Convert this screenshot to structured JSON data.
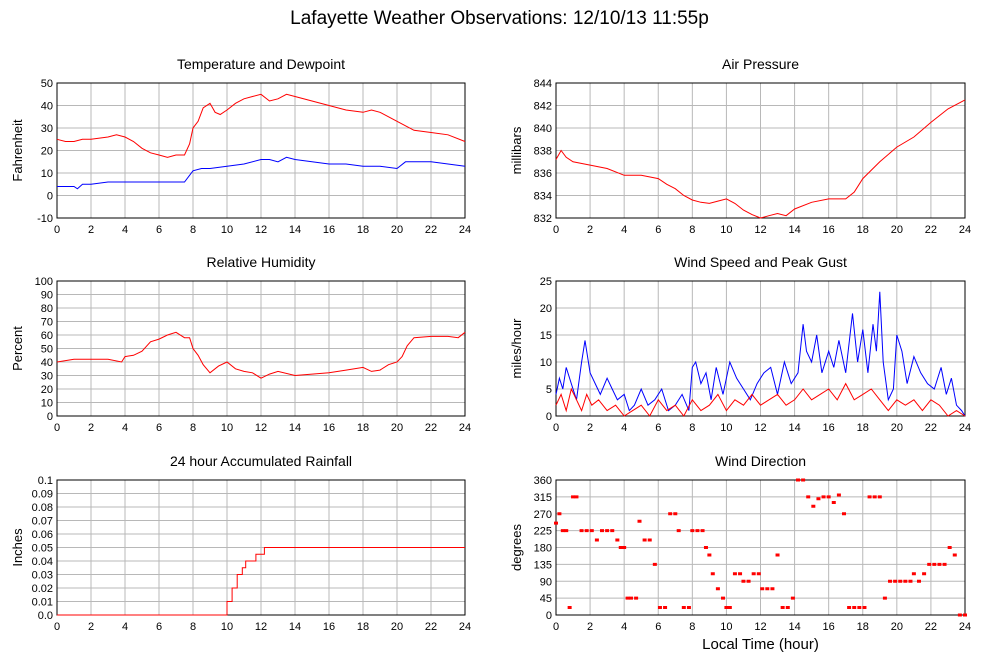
{
  "page": {
    "title": "Lafayette Weather Observations: 12/10/13 11:55p",
    "x_axis_title": "Local Time (hour)"
  },
  "colors": {
    "red": "#ff0000",
    "blue": "#0000ff",
    "grid": "#b8b8b8",
    "axis": "#000000"
  },
  "chart_data": [
    {
      "id": "temp",
      "type": "line",
      "title": "Temperature and Dewpoint",
      "ylabel": "Fahrenheit",
      "xlabel": "",
      "xlim": [
        0,
        24
      ],
      "ylim": [
        -10,
        50
      ],
      "xticks": [
        "0",
        "2",
        "4",
        "6",
        "8",
        "10",
        "12",
        "14",
        "16",
        "18",
        "20",
        "22",
        "24"
      ],
      "yticks": [
        "-10",
        "0",
        "10",
        "20",
        "30",
        "40",
        "50"
      ],
      "grid": true,
      "series": [
        {
          "color": "#ff0000",
          "x": [
            0,
            0.5,
            1,
            1.5,
            2,
            3,
            3.5,
            4,
            4.5,
            5,
            5.5,
            6,
            6.5,
            7,
            7.5,
            7.8,
            8,
            8.3,
            8.6,
            9,
            9.3,
            9.6,
            10,
            10.5,
            11,
            11.5,
            12,
            12.5,
            13,
            13.5,
            14,
            15,
            16,
            17,
            18,
            18.5,
            19,
            20,
            20.5,
            21,
            22,
            23,
            24
          ],
          "y": [
            25,
            24,
            24,
            25,
            25,
            26,
            27,
            26,
            24,
            21,
            19,
            18,
            17,
            18,
            18,
            23,
            30,
            33,
            39,
            41,
            37,
            36,
            38,
            41,
            43,
            44,
            45,
            42,
            43,
            45,
            44,
            42,
            40,
            38,
            37,
            38,
            37,
            33,
            31,
            29,
            28,
            27,
            24
          ]
        },
        {
          "color": "#0000ff",
          "x": [
            0,
            0.5,
            1,
            1.2,
            1.5,
            2,
            3,
            4,
            5,
            6,
            7,
            7.5,
            8,
            8.5,
            9,
            10,
            11,
            12,
            12.5,
            13,
            13.5,
            14,
            15,
            16,
            17,
            18,
            19,
            20,
            20.5,
            21,
            22,
            23,
            24
          ],
          "y": [
            4,
            4,
            4,
            3,
            5,
            5,
            6,
            6,
            6,
            6,
            6,
            6,
            11,
            12,
            12,
            13,
            14,
            16,
            16,
            15,
            17,
            16,
            15,
            14,
            14,
            13,
            13,
            12,
            15,
            15,
            15,
            14,
            13
          ]
        }
      ]
    },
    {
      "id": "press",
      "type": "line",
      "title": "Air Pressure",
      "ylabel": "millibars",
      "xlabel": "",
      "xlim": [
        0,
        24
      ],
      "ylim": [
        832,
        844
      ],
      "xticks": [
        "0",
        "2",
        "4",
        "6",
        "8",
        "10",
        "12",
        "14",
        "16",
        "18",
        "20",
        "22",
        "24"
      ],
      "yticks": [
        "832",
        "834",
        "836",
        "838",
        "840",
        "842",
        "844"
      ],
      "grid": true,
      "series": [
        {
          "color": "#ff0000",
          "x": [
            0,
            0.3,
            0.6,
            1,
            2,
            3,
            4,
            5,
            6,
            6.5,
            7,
            7.5,
            8,
            8.5,
            9,
            9.5,
            10,
            10.5,
            11,
            11.5,
            12,
            12.5,
            13,
            13.5,
            14,
            15,
            16,
            17,
            17.5,
            18,
            19,
            20,
            21,
            22,
            23,
            24
          ],
          "y": [
            837.2,
            838,
            837.4,
            837,
            836.7,
            836.4,
            835.8,
            835.8,
            835.5,
            835,
            834.6,
            834,
            833.6,
            833.4,
            833.3,
            833.5,
            833.7,
            833.3,
            832.7,
            832.3,
            832,
            832.2,
            832.4,
            832.2,
            832.8,
            833.4,
            833.7,
            833.7,
            834.3,
            835.5,
            837,
            838.3,
            839.2,
            840.5,
            841.7,
            842.5
          ]
        }
      ]
    },
    {
      "id": "rh",
      "type": "line",
      "title": "Relative Humidity",
      "ylabel": "Percent",
      "xlabel": "",
      "xlim": [
        0,
        24
      ],
      "ylim": [
        0,
        100
      ],
      "xticks": [
        "0",
        "2",
        "4",
        "6",
        "8",
        "10",
        "12",
        "14",
        "16",
        "18",
        "20",
        "22",
        "24"
      ],
      "yticks": [
        "0",
        "10",
        "20",
        "30",
        "40",
        "50",
        "60",
        "70",
        "80",
        "90",
        "100"
      ],
      "grid": true,
      "series": [
        {
          "color": "#ff0000",
          "x": [
            0,
            1,
            2,
            3,
            3.8,
            4,
            4.5,
            5,
            5.5,
            6,
            6.5,
            7,
            7.5,
            7.8,
            8,
            8.3,
            8.6,
            9,
            9.5,
            10,
            10.5,
            11,
            11.5,
            12,
            12.5,
            13,
            14,
            15,
            16,
            17,
            18,
            18.5,
            19,
            19.5,
            20,
            20.3,
            20.6,
            21,
            22,
            23,
            23.6,
            24
          ],
          "y": [
            40,
            42,
            42,
            42,
            40,
            44,
            45,
            48,
            55,
            57,
            60,
            62,
            58,
            58,
            50,
            45,
            38,
            32,
            37,
            40,
            35,
            33,
            32,
            28,
            31,
            33,
            30,
            31,
            32,
            34,
            36,
            33,
            34,
            38,
            40,
            44,
            52,
            58,
            59,
            59,
            58,
            62
          ]
        }
      ]
    },
    {
      "id": "wind",
      "type": "line",
      "title": "Wind Speed and Peak Gust",
      "ylabel": "miles/hour",
      "xlabel": "",
      "xlim": [
        0,
        24
      ],
      "ylim": [
        0,
        25
      ],
      "xticks": [
        "0",
        "2",
        "4",
        "6",
        "8",
        "10",
        "12",
        "14",
        "16",
        "18",
        "20",
        "22",
        "24"
      ],
      "yticks": [
        "0",
        "5",
        "10",
        "15",
        "20",
        "25"
      ],
      "grid": true,
      "series": [
        {
          "color": "#0000ff",
          "x": [
            0,
            0.2,
            0.4,
            0.6,
            0.9,
            1.2,
            1.5,
            1.7,
            2,
            2.3,
            2.6,
            3,
            3.3,
            3.6,
            4,
            4.3,
            4.6,
            5,
            5.4,
            5.8,
            6.2,
            6.6,
            7,
            7.4,
            7.8,
            8,
            8.2,
            8.5,
            8.8,
            9.1,
            9.4,
            9.8,
            10.2,
            10.6,
            11,
            11.4,
            11.8,
            12.2,
            12.6,
            13,
            13.4,
            13.8,
            14.2,
            14.5,
            14.7,
            15,
            15.3,
            15.6,
            16,
            16.3,
            16.6,
            17,
            17.4,
            17.7,
            18,
            18.3,
            18.6,
            18.8,
            19,
            19.2,
            19.5,
            19.8,
            20,
            20.3,
            20.6,
            21,
            21.4,
            21.8,
            22.2,
            22.6,
            22.9,
            23.2,
            23.5,
            23.8,
            24
          ],
          "y": [
            4,
            7,
            5,
            9,
            6,
            3,
            10,
            14,
            8,
            6,
            4,
            7,
            5,
            3,
            4,
            1,
            2,
            5,
            2,
            3,
            5,
            1,
            2,
            4,
            1,
            9,
            10,
            6,
            8,
            3,
            9,
            4,
            10,
            7,
            5,
            3,
            6,
            8,
            9,
            4,
            10,
            6,
            8,
            17,
            12,
            10,
            15,
            8,
            12,
            9,
            14,
            8,
            19,
            10,
            16,
            8,
            17,
            12,
            23,
            10,
            3,
            5,
            15,
            12,
            6,
            11,
            8,
            6,
            5,
            9,
            4,
            7,
            2,
            1,
            0
          ]
        },
        {
          "color": "#ff0000",
          "x": [
            0,
            0.3,
            0.6,
            0.9,
            1.2,
            1.5,
            1.8,
            2.1,
            2.5,
            3,
            3.5,
            4,
            4.5,
            5,
            5.5,
            6,
            6.5,
            7,
            7.5,
            8,
            8.5,
            9,
            9.5,
            10,
            10.5,
            11,
            11.5,
            12,
            12.5,
            13,
            13.5,
            14,
            14.5,
            15,
            15.5,
            16,
            16.5,
            17,
            17.5,
            18,
            18.5,
            19,
            19.5,
            20,
            20.5,
            21,
            21.5,
            22,
            22.5,
            23,
            23.5,
            24
          ],
          "y": [
            2,
            4,
            1,
            5,
            3,
            1,
            4,
            2,
            3,
            1,
            2,
            0,
            1,
            2,
            0,
            3,
            1,
            2,
            0,
            3,
            1,
            2,
            4,
            1,
            3,
            2,
            4,
            2,
            3,
            4,
            2,
            3,
            5,
            3,
            4,
            5,
            3,
            6,
            3,
            4,
            5,
            3,
            1,
            3,
            2,
            3,
            1,
            3,
            2,
            0,
            1,
            0
          ]
        }
      ]
    },
    {
      "id": "rain",
      "type": "line",
      "title": "24 hour Accumulated Rainfall",
      "ylabel": "Inches",
      "xlabel": "",
      "xlim": [
        0,
        24
      ],
      "ylim": [
        0,
        0.1
      ],
      "xticks": [
        "0",
        "2",
        "4",
        "6",
        "8",
        "10",
        "12",
        "14",
        "16",
        "18",
        "20",
        "22",
        "24"
      ],
      "yticks": [
        "0.0",
        "0.01",
        "0.02",
        "0.03",
        "0.04",
        "0.05",
        "0.06",
        "0.07",
        "0.08",
        "0.09",
        "0.1"
      ],
      "grid": true,
      "series": [
        {
          "color": "#ff0000",
          "x": [
            0,
            10,
            10,
            10.3,
            10.3,
            10.6,
            10.6,
            10.9,
            10.9,
            11.1,
            11.1,
            11.4,
            11.4,
            11.7,
            11.7,
            12.2,
            12.2,
            12.5,
            24
          ],
          "y": [
            0,
            0,
            0.01,
            0.01,
            0.02,
            0.02,
            0.03,
            0.03,
            0.035,
            0.035,
            0.04,
            0.04,
            0.04,
            0.04,
            0.045,
            0.045,
            0.05,
            0.05,
            0.05
          ]
        }
      ]
    },
    {
      "id": "dir",
      "type": "scatter",
      "title": "Wind Direction",
      "ylabel": "degrees",
      "xlabel": "Local Time (hour)",
      "xlim": [
        0,
        24
      ],
      "ylim": [
        0,
        360
      ],
      "xticks": [
        "0",
        "2",
        "4",
        "6",
        "8",
        "10",
        "12",
        "14",
        "16",
        "18",
        "20",
        "22",
        "24"
      ],
      "yticks": [
        "0",
        "45",
        "90",
        "135",
        "180",
        "225",
        "270",
        "315",
        "360"
      ],
      "grid": true,
      "series": [
        {
          "color": "#ff0000",
          "x": [
            0,
            0.2,
            0.4,
            0.6,
            0.8,
            1,
            1.2,
            1.5,
            1.8,
            2.1,
            2.4,
            2.7,
            3,
            3.3,
            3.6,
            3.8,
            4,
            4.2,
            4.4,
            4.7,
            4.9,
            5.2,
            5.5,
            5.8,
            6.1,
            6.4,
            6.7,
            7,
            7.2,
            7.5,
            7.8,
            8,
            8.3,
            8.6,
            8.8,
            9,
            9.2,
            9.5,
            9.8,
            10,
            10.2,
            10.5,
            10.8,
            11,
            11.3,
            11.6,
            11.9,
            12.1,
            12.4,
            12.7,
            13,
            13.3,
            13.6,
            13.9,
            14.2,
            14.5,
            14.8,
            15.1,
            15.4,
            15.7,
            16,
            16.3,
            16.6,
            16.9,
            17.2,
            17.5,
            17.8,
            18.1,
            18.4,
            18.7,
            19,
            19.3,
            19.6,
            19.9,
            20.2,
            20.5,
            20.8,
            21,
            21.3,
            21.6,
            21.9,
            22.2,
            22.5,
            22.8,
            23.1,
            23.4,
            23.7,
            24
          ],
          "y": [
            245,
            270,
            225,
            225,
            20,
            315,
            315,
            225,
            225,
            225,
            200,
            225,
            225,
            225,
            200,
            180,
            180,
            45,
            45,
            45,
            250,
            200,
            200,
            135,
            20,
            20,
            270,
            270,
            225,
            20,
            20,
            225,
            225,
            225,
            180,
            160,
            110,
            70,
            45,
            20,
            20,
            110,
            110,
            90,
            90,
            110,
            110,
            70,
            70,
            70,
            160,
            20,
            20,
            45,
            360,
            360,
            315,
            290,
            310,
            315,
            315,
            300,
            320,
            270,
            20,
            20,
            20,
            20,
            315,
            315,
            315,
            45,
            90,
            90,
            90,
            90,
            90,
            110,
            90,
            110,
            135,
            135,
            135,
            135,
            180,
            160,
            0,
            0
          ]
        }
      ]
    }
  ]
}
